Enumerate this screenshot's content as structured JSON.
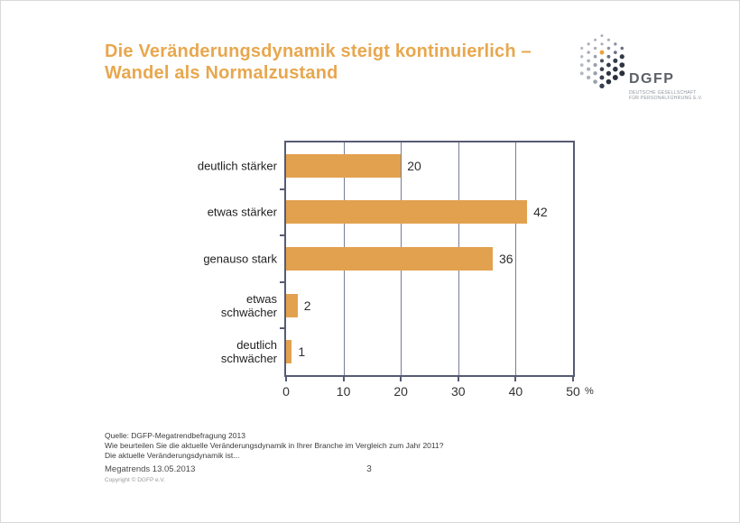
{
  "slide": {
    "title": "Die Veränderungsdynamik steigt kontinuierlich –\nWandel als Normalzustand"
  },
  "logo": {
    "acronym": "DGFP",
    "subtitle_line1": "DEUTSCHE GESELLSCHAFT",
    "subtitle_line2": "FÜR PERSONALFÜHRUNG E.V."
  },
  "chart_data": {
    "type": "bar",
    "orientation": "horizontal",
    "categories": [
      "deutlich stärker",
      "etwas stärker",
      "genauso stark",
      "etwas\nschwächer",
      "deutlich\nschwächer"
    ],
    "values": [
      20,
      42,
      36,
      2,
      1
    ],
    "title": "",
    "xlabel": "%",
    "ylabel": "",
    "xlim": [
      0,
      50
    ],
    "x_ticks": [
      0,
      10,
      20,
      30,
      40,
      50
    ],
    "grid": true,
    "legend": false,
    "data_labels": true
  },
  "footer": {
    "source_line1": "Quelle: DGFP-Megatrendbefragung 2013",
    "source_line2": "Wie beurteilen Sie die aktuelle Veränderungsdynamik in Ihrer Branche im Vergleich zum Jahr 2011?",
    "source_line3": "Die aktuelle Veränderungsdynamik ist...",
    "presentation": "Megatrends 13.05.2013",
    "copyright": "Copyright © DGFP e.V.",
    "page_number": "3"
  },
  "colors": {
    "title_orange": "#E8A74E",
    "bar_orange": "#E2A14F",
    "grid_line": "#787D96",
    "axis_line": "#565B73"
  }
}
